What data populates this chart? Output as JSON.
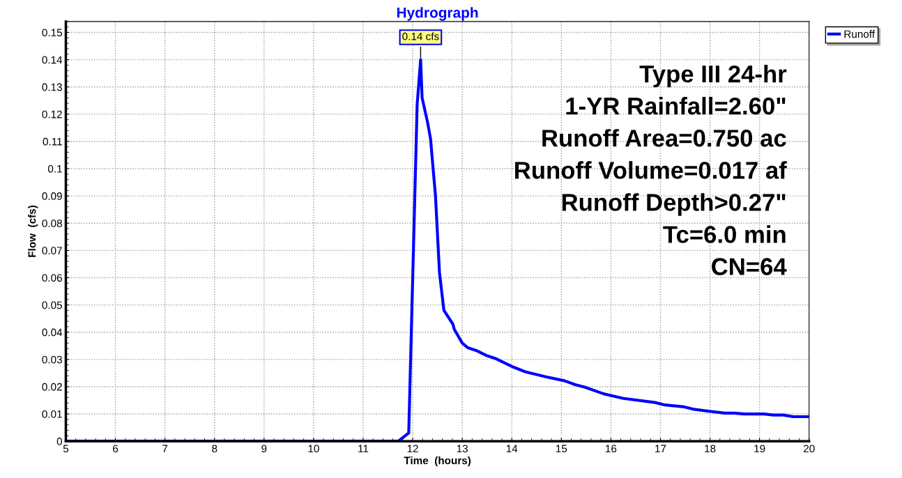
{
  "chart_data": {
    "type": "line",
    "title": "Hydrograph",
    "xlabel": "Time  (hours)",
    "ylabel": "Flow  (cfs)",
    "series": [
      {
        "name": "Runoff",
        "color": "#0000ff",
        "x": [
          5,
          11.71,
          11.92,
          12.09,
          12.16,
          12.19,
          12.3,
          12.36,
          12.46,
          12.54,
          12.63,
          12.81,
          12.84,
          13.0,
          13.11,
          13.28,
          13.48,
          13.69,
          14.03,
          14.27,
          14.67,
          15.06,
          15.29,
          15.48,
          15.85,
          16.25,
          16.89,
          17.09,
          17.48,
          17.68,
          18.02,
          18.3,
          18.49,
          18.69,
          19.09,
          19.28,
          19.48,
          19.68,
          20
        ],
        "values": [
          0,
          0,
          0.003,
          0.1235,
          0.14,
          0.126,
          0.117,
          0.111,
          0.09,
          0.062,
          0.048,
          0.043,
          0.041,
          0.036,
          0.0343,
          0.0333,
          0.0315,
          0.0302,
          0.0272,
          0.0255,
          0.0237,
          0.0222,
          0.0207,
          0.0198,
          0.0174,
          0.0157,
          0.0142,
          0.0133,
          0.0126,
          0.0117,
          0.0109,
          0.0103,
          0.0103,
          0.01,
          0.01,
          0.0096,
          0.0096,
          0.009,
          0.009
        ]
      }
    ],
    "annotations": [
      {
        "text": "0.14 cfs",
        "x": 12.16,
        "y": 0.14
      },
      "Type III 24-hr",
      "1-YR Rainfall=2.60\"",
      "Runoff Area=0.750 ac",
      "Runoff Volume=0.017 af",
      "Runoff Depth>0.27\"",
      "Tc=6.0 min",
      "CN=64"
    ],
    "xlim": [
      5,
      20
    ],
    "xticks": [
      5,
      6,
      7,
      8,
      9,
      10,
      11,
      12,
      13,
      14,
      15,
      16,
      17,
      18,
      19,
      20
    ],
    "ylim": [
      0,
      0.154
    ],
    "yticks": [
      0,
      0.01,
      0.02,
      0.03,
      0.04,
      0.05,
      0.06,
      0.07,
      0.08,
      0.09,
      0.1,
      0.11,
      0.12,
      0.13,
      0.14,
      0.15
    ],
    "grid": true,
    "legend": "top right",
    "marker": "none",
    "line_style": "solid"
  }
}
